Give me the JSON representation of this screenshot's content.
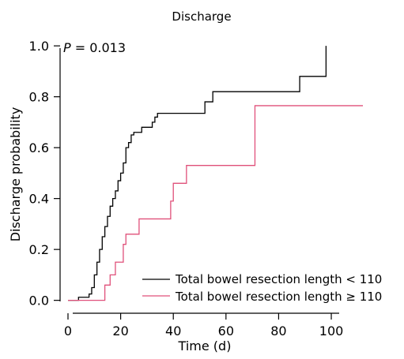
{
  "chart_data": {
    "type": "line",
    "title": "Discharge",
    "xlabel": "Time (d)",
    "ylabel": "Discharge probability",
    "annotation": {
      "p_label": "P",
      "p_value": " = 0.013"
    },
    "xlim": [
      -3,
      115
    ],
    "ylim": [
      -0.06,
      1.05
    ],
    "xticks": [
      0,
      20,
      40,
      60,
      80,
      100
    ],
    "yticks": [
      0.0,
      0.2,
      0.4,
      0.6,
      0.8,
      1.0
    ],
    "ytick_labels": [
      "0.0",
      "0.2",
      "0.4",
      "0.6",
      "0.8",
      "1.0"
    ],
    "grid": false,
    "legend_position": "bottom-right",
    "series": [
      {
        "name": "Total bowel resection length < 110",
        "color": "#000000",
        "step": true,
        "x": [
          0,
          4,
          8,
          9,
          10,
          11,
          12,
          13,
          14,
          15,
          16,
          17,
          18,
          19,
          20,
          21,
          22,
          23,
          24,
          25,
          27,
          28,
          32,
          33,
          34,
          35,
          36,
          52,
          53,
          55,
          88,
          98,
          98
        ],
        "y": [
          0,
          0.012,
          0.025,
          0.05,
          0.1,
          0.15,
          0.2,
          0.25,
          0.29,
          0.33,
          0.37,
          0.4,
          0.43,
          0.47,
          0.5,
          0.54,
          0.6,
          0.62,
          0.65,
          0.66,
          0.66,
          0.68,
          0.7,
          0.72,
          0.735,
          0.735,
          0.735,
          0.78,
          0.78,
          0.82,
          0.88,
          0.88,
          1.0
        ]
      },
      {
        "name": "Total bowel resection length ≥ 110",
        "color": "#e0507a",
        "step": true,
        "x": [
          0,
          12,
          14,
          15,
          16,
          18,
          19,
          20,
          21,
          22,
          24,
          27,
          28,
          38,
          39,
          40,
          42,
          45,
          52,
          71,
          112
        ],
        "y": [
          0,
          0,
          0.06,
          0.06,
          0.1,
          0.15,
          0.15,
          0.15,
          0.22,
          0.26,
          0.26,
          0.32,
          0.32,
          0.32,
          0.39,
          0.46,
          0.46,
          0.53,
          0.53,
          0.765,
          0.765
        ]
      }
    ]
  }
}
